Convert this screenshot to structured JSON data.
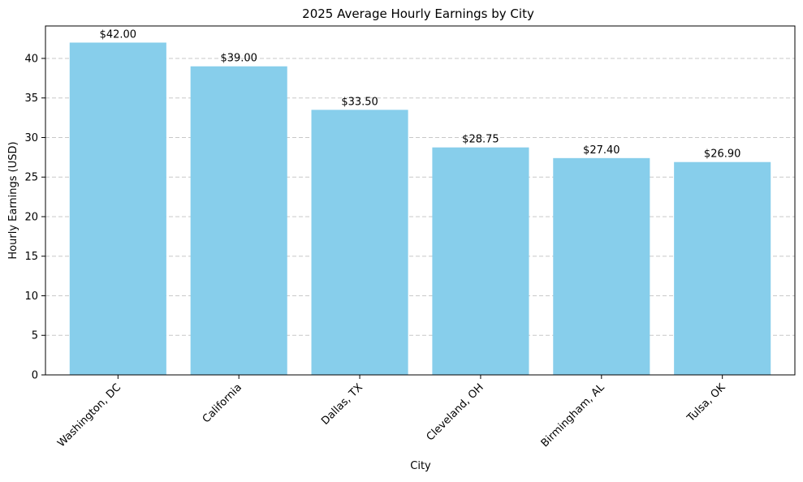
{
  "chart_data": {
    "type": "bar",
    "title": "2025 Average Hourly Earnings by City",
    "xlabel": "City",
    "ylabel": "Hourly Earnings (USD)",
    "categories": [
      "Washington, DC",
      "California",
      "Dallas, TX",
      "Cleveland, OH",
      "Birmingham, AL",
      "Tulsa, OK"
    ],
    "values": [
      42.0,
      39.0,
      33.5,
      28.75,
      27.4,
      26.9
    ],
    "data_labels": [
      "$42.00",
      "$39.00",
      "$33.50",
      "$28.75",
      "$27.40",
      "$26.90"
    ],
    "ylim": [
      0,
      44.1
    ],
    "yticks": [
      0,
      5,
      10,
      15,
      20,
      25,
      30,
      35,
      40
    ],
    "grid": "y-axis dashed",
    "legend": "none",
    "colors": {
      "bar": "#87ceeb",
      "grid": "#c8c8c8",
      "axis": "#000000"
    }
  }
}
